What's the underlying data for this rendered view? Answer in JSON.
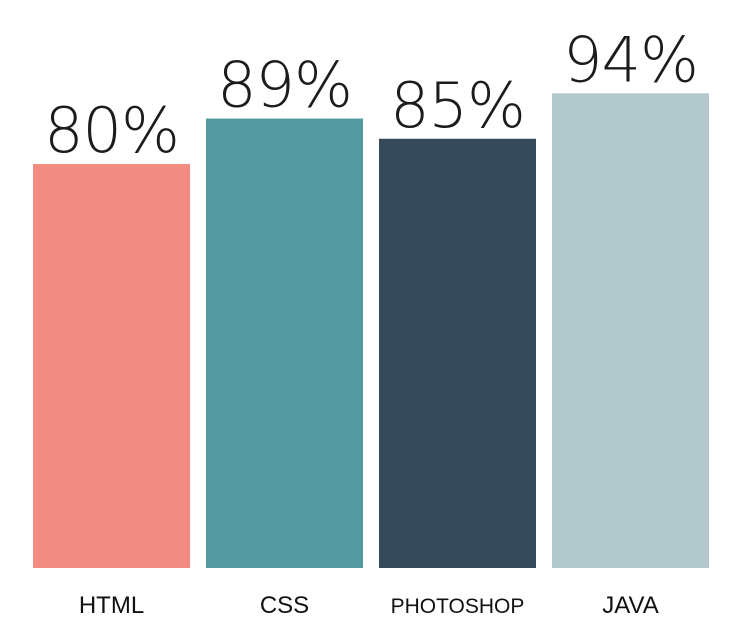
{
  "chart_data": {
    "type": "bar",
    "categories": [
      "HTML",
      "CSS",
      "PHOTOSHOP",
      "JAVA"
    ],
    "values": [
      80,
      89,
      85,
      94
    ],
    "value_labels": [
      "80%",
      "89%",
      "85%",
      "94%"
    ],
    "colors": [
      "#f28b82",
      "#539aa0",
      "#344a5a",
      "#b3c8cb"
    ],
    "ylim": [
      0,
      100
    ],
    "grid": false,
    "legend": "none"
  }
}
